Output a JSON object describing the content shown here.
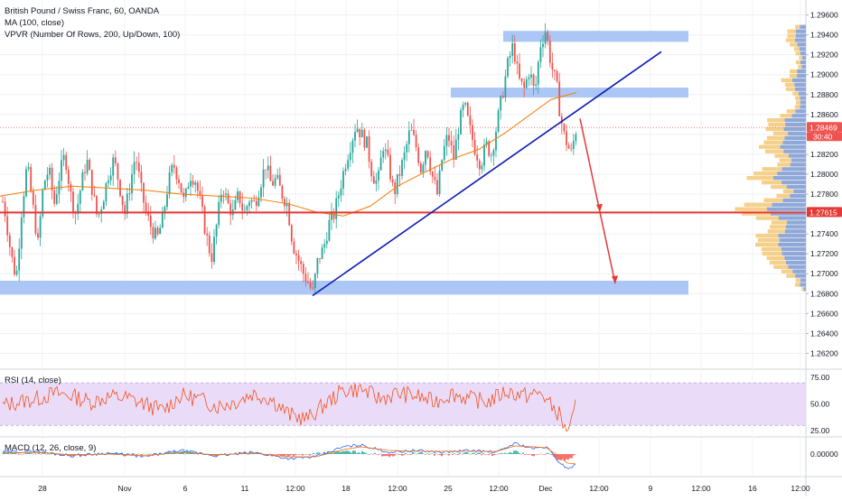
{
  "header": {
    "symbol_title": "British Pound / Swiss Franc, 60, OANDA",
    "ma_label": "MA (100, close)",
    "vpvr_label": "VPVR (Number Of Rows, 200, Up/Down, 100)"
  },
  "colors": {
    "up": "#26a69a",
    "down": "#ef5350",
    "ma": "#f57c00",
    "trendline": "#0d1bb5",
    "zone": "#a8c4f5",
    "support_line": "#e53935",
    "arrow": "#e53935",
    "vol_up": "#f5d08a",
    "vol_down": "#8fa8d8",
    "rsi_line": "#f4511e",
    "rsi_band": "#eadcf8",
    "macd_line": "#2962ff",
    "signal_line": "#ff6d00"
  },
  "chart_data": [
    {
      "type": "candlestick",
      "title": "British Pound / Swiss Franc, 60, OANDA",
      "ylim": [
        1.2605,
        1.2975
      ],
      "y_ticks": [
        "1.29600",
        "1.29400",
        "1.29200",
        "1.29000",
        "1.28800",
        "1.28600",
        "1.28400",
        "1.28200",
        "1.28000",
        "1.27800",
        "1.27600",
        "1.27400",
        "1.27200",
        "1.27000",
        "1.26800",
        "1.26600",
        "1.26400",
        "1.26200"
      ],
      "x_ticks": [
        "28",
        "Nov",
        "6",
        "11",
        "12:00",
        "18",
        "12:00",
        "25",
        "12:00",
        "Dec",
        "12:00",
        "9",
        "12:00",
        "16",
        "12:00"
      ],
      "last_price": "1.28469",
      "countdown": "30:40",
      "support_label": "1.27615",
      "support_level": 1.27615,
      "current_level": 1.28469,
      "zones": [
        {
          "top": 1.2944,
          "bottom": 1.2933
        },
        {
          "top": 1.2887,
          "bottom": 1.2877
        },
        {
          "top": 1.2693,
          "bottom": 1.2679
        }
      ],
      "trendline": [
        {
          "x": "Nov 14 12:00",
          "y": 1.2678
        },
        {
          "x": "Dec 5 12:00",
          "y": 1.2923
        }
      ],
      "forecast_arrow": [
        {
          "x": "Dec 2",
          "y": 1.2856
        },
        {
          "x": "Dec 4",
          "y": 1.2762
        },
        {
          "x": "Dec 5",
          "y": 1.269
        }
      ],
      "path": [
        [
          0,
          1.2785
        ],
        [
          6,
          1.276
        ],
        [
          12,
          1.272
        ],
        [
          18,
          1.2695
        ],
        [
          24,
          1.2765
        ],
        [
          30,
          1.281
        ],
        [
          36,
          1.277
        ],
        [
          42,
          1.273
        ],
        [
          48,
          1.279
        ],
        [
          54,
          1.2805
        ],
        [
          60,
          1.277
        ],
        [
          66,
          1.28
        ],
        [
          72,
          1.282
        ],
        [
          78,
          1.278
        ],
        [
          84,
          1.276
        ],
        [
          90,
          1.279
        ],
        [
          96,
          1.2815
        ],
        [
          102,
          1.2785
        ],
        [
          108,
          1.2755
        ],
        [
          114,
          1.2775
        ],
        [
          120,
          1.28
        ],
        [
          126,
          1.2815
        ],
        [
          132,
          1.279
        ],
        [
          138,
          1.276
        ],
        [
          144,
          1.279
        ],
        [
          150,
          1.282
        ],
        [
          156,
          1.2785
        ],
        [
          162,
          1.276
        ],
        [
          168,
          1.2745
        ],
        [
          174,
          1.2735
        ],
        [
          180,
          1.2755
        ],
        [
          186,
          1.279
        ],
        [
          192,
          1.281
        ],
        [
          198,
          1.2795
        ],
        [
          204,
          1.277
        ],
        [
          210,
          1.28
        ],
        [
          216,
          1.2795
        ],
        [
          222,
          1.277
        ],
        [
          228,
          1.274
        ],
        [
          234,
          1.2715
        ],
        [
          240,
          1.275
        ],
        [
          246,
          1.279
        ],
        [
          252,
          1.277
        ],
        [
          258,
          1.276
        ],
        [
          264,
          1.278
        ],
        [
          270,
          1.276
        ],
        [
          276,
          1.2775
        ],
        [
          282,
          1.277
        ],
        [
          288,
          1.279
        ],
        [
          294,
          1.281
        ],
        [
          300,
          1.279
        ],
        [
          306,
          1.2795
        ],
        [
          312,
          1.278
        ],
        [
          318,
          1.277
        ],
        [
          324,
          1.273
        ],
        [
          330,
          1.2715
        ],
        [
          336,
          1.27
        ],
        [
          342,
          1.269
        ],
        [
          346,
          1.268
        ],
        [
          352,
          1.2715
        ],
        [
          358,
          1.2725
        ],
        [
          364,
          1.275
        ],
        [
          370,
          1.276
        ],
        [
          376,
          1.2785
        ],
        [
          382,
          1.281
        ],
        [
          388,
          1.283
        ],
        [
          394,
          1.285
        ],
        [
          400,
          1.284
        ],
        [
          406,
          1.283
        ],
        [
          412,
          1.28
        ],
        [
          418,
          1.279
        ],
        [
          424,
          1.283
        ],
        [
          430,
          1.281
        ],
        [
          436,
          1.278
        ],
        [
          442,
          1.28
        ],
        [
          448,
          1.282
        ],
        [
          454,
          1.2845
        ],
        [
          460,
          1.283
        ],
        [
          466,
          1.2805
        ],
        [
          472,
          1.283
        ],
        [
          478,
          1.28
        ],
        [
          484,
          1.278
        ],
        [
          490,
          1.282
        ],
        [
          496,
          1.284
        ],
        [
          502,
          1.2815
        ],
        [
          508,
          1.285
        ],
        [
          514,
          1.287
        ],
        [
          520,
          1.2845
        ],
        [
          526,
          1.2825
        ],
        [
          532,
          1.281
        ],
        [
          538,
          1.283
        ],
        [
          544,
          1.282
        ],
        [
          550,
          1.285
        ],
        [
          556,
          1.288
        ],
        [
          562,
          1.291
        ],
        [
          568,
          1.293
        ],
        [
          574,
          1.2895
        ],
        [
          580,
          1.2885
        ],
        [
          586,
          1.2905
        ],
        [
          592,
          1.288
        ],
        [
          598,
          1.293
        ],
        [
          604,
          1.2945
        ],
        [
          610,
          1.291
        ],
        [
          616,
          1.289
        ],
        [
          620,
          1.286
        ],
        [
          624,
          1.284
        ],
        [
          628,
          1.283
        ],
        [
          632,
          1.282
        ],
        [
          638,
          1.2847
        ]
      ],
      "ma100": [
        [
          0,
          1.2778
        ],
        [
          40,
          1.2784
        ],
        [
          80,
          1.2788
        ],
        [
          120,
          1.2786
        ],
        [
          160,
          1.2784
        ],
        [
          200,
          1.278
        ],
        [
          240,
          1.2778
        ],
        [
          280,
          1.2776
        ],
        [
          320,
          1.277
        ],
        [
          350,
          1.2762
        ],
        [
          380,
          1.2758
        ],
        [
          410,
          1.2768
        ],
        [
          440,
          1.2788
        ],
        [
          470,
          1.2802
        ],
        [
          500,
          1.2815
        ],
        [
          530,
          1.2825
        ],
        [
          560,
          1.2842
        ],
        [
          590,
          1.2862
        ],
        [
          610,
          1.2875
        ],
        [
          638,
          1.2882
        ]
      ]
    },
    {
      "type": "line",
      "title": "RSI (14, close)",
      "ylim": [
        20,
        82
      ],
      "y_ticks": [
        "75.00",
        "50.00",
        "25.00"
      ],
      "band": [
        30,
        70
      ],
      "path": [
        [
          0,
          48
        ],
        [
          20,
          52
        ],
        [
          40,
          55
        ],
        [
          60,
          60
        ],
        [
          80,
          58
        ],
        [
          100,
          52
        ],
        [
          120,
          57
        ],
        [
          140,
          56
        ],
        [
          160,
          50
        ],
        [
          180,
          44
        ],
        [
          200,
          58
        ],
        [
          220,
          55
        ],
        [
          240,
          48
        ],
        [
          260,
          52
        ],
        [
          280,
          60
        ],
        [
          300,
          55
        ],
        [
          320,
          40
        ],
        [
          340,
          36
        ],
        [
          360,
          50
        ],
        [
          380,
          63
        ],
        [
          400,
          64
        ],
        [
          420,
          55
        ],
        [
          440,
          60
        ],
        [
          460,
          58
        ],
        [
          480,
          52
        ],
        [
          500,
          60
        ],
        [
          520,
          55
        ],
        [
          540,
          52
        ],
        [
          560,
          62
        ],
        [
          580,
          58
        ],
        [
          600,
          60
        ],
        [
          610,
          48
        ],
        [
          620,
          40
        ],
        [
          625,
          26
        ],
        [
          632,
          30
        ],
        [
          638,
          50
        ]
      ]
    },
    {
      "type": "line",
      "title": "MACD (12, 26, close, 9)",
      "ylim": [
        -0.0025,
        0.0018
      ],
      "y_ticks": [
        "0.00000"
      ],
      "macd": [
        [
          0,
          0.0002
        ],
        [
          40,
          0.0003
        ],
        [
          80,
          -0.0002
        ],
        [
          120,
          0.0001
        ],
        [
          160,
          -0.0003
        ],
        [
          200,
          0.0004
        ],
        [
          240,
          -0.0002
        ],
        [
          280,
          0.0002
        ],
        [
          320,
          -0.0005
        ],
        [
          350,
          -0.0003
        ],
        [
          380,
          0.0008
        ],
        [
          400,
          0.001
        ],
        [
          430,
          0.0002
        ],
        [
          460,
          0.0004
        ],
        [
          490,
          0.0002
        ],
        [
          520,
          0.0004
        ],
        [
          550,
          0.0002
        ],
        [
          570,
          0.0012
        ],
        [
          590,
          0.0006
        ],
        [
          605,
          0.0008
        ],
        [
          618,
          -0.0008
        ],
        [
          628,
          -0.0016
        ],
        [
          638,
          -0.0012
        ]
      ],
      "signal": [
        [
          0,
          0.0001
        ],
        [
          40,
          0.0002
        ],
        [
          80,
          -0.0001
        ],
        [
          120,
          0.0
        ],
        [
          160,
          -0.0002
        ],
        [
          200,
          0.0002
        ],
        [
          240,
          -0.0001
        ],
        [
          280,
          0.0001
        ],
        [
          320,
          -0.0003
        ],
        [
          350,
          -0.0003
        ],
        [
          380,
          0.0005
        ],
        [
          400,
          0.0008
        ],
        [
          430,
          0.0004
        ],
        [
          460,
          0.0003
        ],
        [
          490,
          0.0003
        ],
        [
          520,
          0.0003
        ],
        [
          550,
          0.0003
        ],
        [
          570,
          0.0009
        ],
        [
          590,
          0.0008
        ],
        [
          605,
          0.0007
        ],
        [
          618,
          -0.0002
        ],
        [
          628,
          -0.001
        ],
        [
          638,
          -0.0011
        ]
      ]
    }
  ]
}
